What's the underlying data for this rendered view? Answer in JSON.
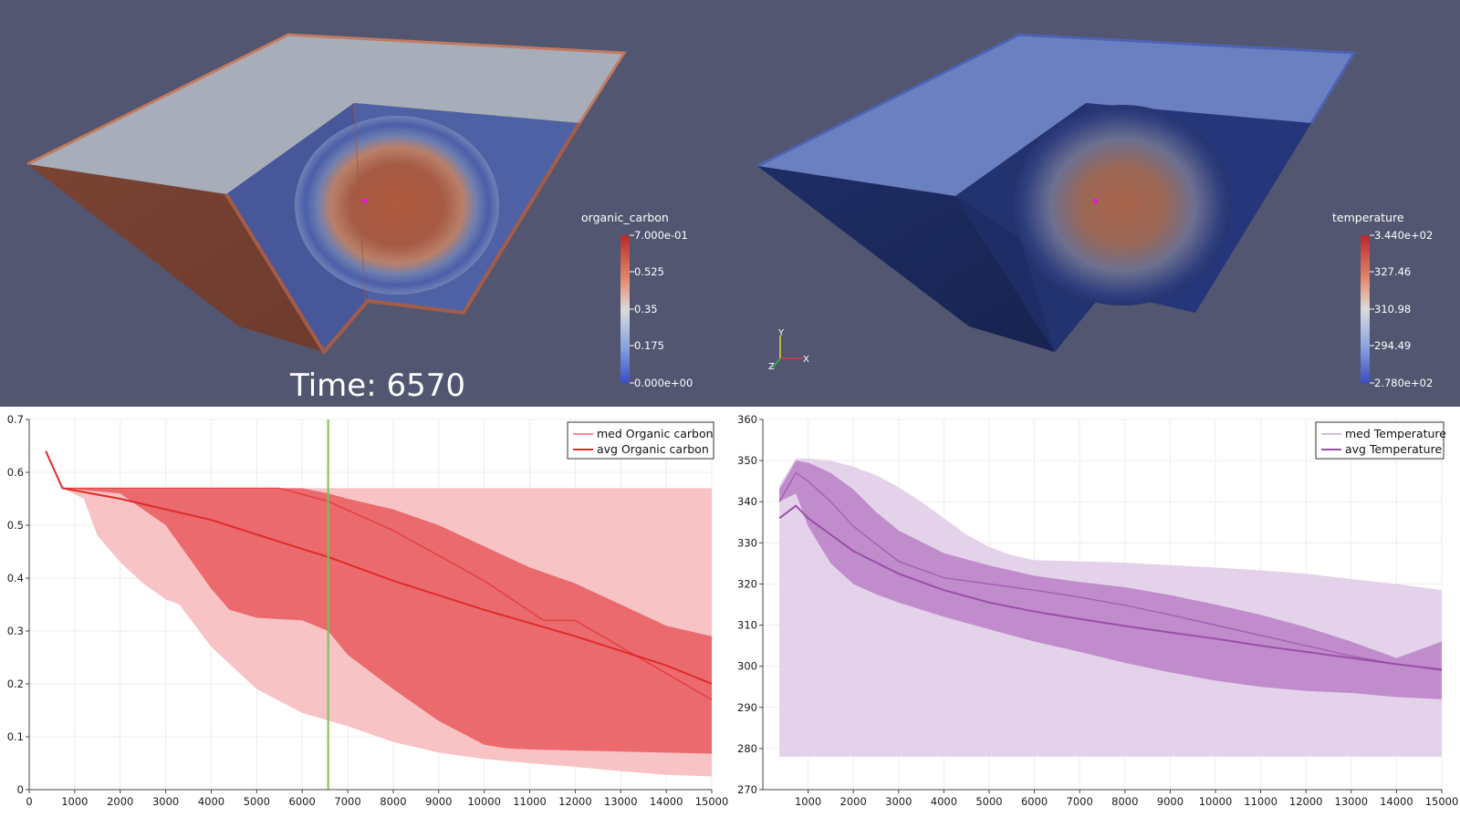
{
  "viewport_left": {
    "colorbar_title": "organic_carbon",
    "colorbar_ticks": [
      "7.000e-01",
      "0.525",
      "0.35",
      "0.175",
      "0.000e+00"
    ],
    "time_label": "Time: 6570"
  },
  "viewport_right": {
    "colorbar_title": "temperature",
    "colorbar_ticks": [
      "3.440e+02",
      "327.46",
      "310.98",
      "294.49",
      "2.780e+02"
    ],
    "axes_labels": {
      "x": "X",
      "y": "Y",
      "z": "Z"
    }
  },
  "colors": {
    "background_3d": "#525670",
    "organic_line": "#e02a2a",
    "organic_band_outer": "#f7c3c5",
    "organic_band_inner": "#ea6a6e",
    "time_marker": "#7cc04a",
    "temp_line": "#9a4ea8",
    "temp_band_outer": "#e4d2ea",
    "temp_band_inner": "#c08ccc"
  },
  "chart_data": [
    {
      "type": "line",
      "xlim": [
        0,
        15000
      ],
      "ylim": [
        0,
        0.7
      ],
      "x_ticks": [
        0,
        1000,
        2000,
        3000,
        4000,
        5000,
        6000,
        7000,
        8000,
        9000,
        10000,
        11000,
        12000,
        13000,
        14000,
        15000
      ],
      "y_ticks": [
        0,
        0.1,
        0.2,
        0.3,
        0.4,
        0.5,
        0.6,
        0.7
      ],
      "grid": true,
      "legend_position": "top-right",
      "legend": [
        "med Organic carbon",
        "avg Organic carbon"
      ],
      "time_marker_x": 6570,
      "series": [
        {
          "name": "avg Organic carbon",
          "x": [
            365,
            730,
            2000,
            4000,
            6000,
            6570,
            8000,
            10000,
            12000,
            14000,
            15000
          ],
          "values": [
            0.64,
            0.57,
            0.55,
            0.51,
            0.455,
            0.44,
            0.395,
            0.34,
            0.29,
            0.235,
            0.2
          ]
        },
        {
          "name": "med Organic carbon",
          "x": [
            730,
            2000,
            4000,
            5500,
            6570,
            8000,
            10000,
            11300,
            12000,
            13000,
            14000,
            15000
          ],
          "values": [
            0.57,
            0.57,
            0.57,
            0.57,
            0.545,
            0.49,
            0.395,
            0.32,
            0.32,
            0.27,
            0.22,
            0.17
          ]
        }
      ],
      "band_outer": {
        "x": [
          730,
          1200,
          1500,
          2000,
          2500,
          3000,
          3300,
          4000,
          5000,
          6000,
          7000,
          8000,
          9000,
          10000,
          11000,
          12000,
          13000,
          14000,
          15000
        ],
        "upper": [
          0.57,
          0.57,
          0.57,
          0.57,
          0.57,
          0.57,
          0.57,
          0.57,
          0.57,
          0.57,
          0.57,
          0.57,
          0.57,
          0.57,
          0.57,
          0.57,
          0.57,
          0.57,
          0.57
        ],
        "lower": [
          0.57,
          0.55,
          0.48,
          0.43,
          0.39,
          0.36,
          0.35,
          0.27,
          0.19,
          0.145,
          0.12,
          0.09,
          0.07,
          0.058,
          0.05,
          0.043,
          0.035,
          0.028,
          0.025
        ]
      },
      "band_inner": {
        "x": [
          730,
          2000,
          3000,
          4000,
          4400,
          5000,
          6000,
          6570,
          7000,
          8000,
          9000,
          10000,
          10500,
          11000,
          12000,
          13000,
          14000,
          15000
        ],
        "upper": [
          0.57,
          0.57,
          0.57,
          0.57,
          0.57,
          0.57,
          0.57,
          0.56,
          0.55,
          0.53,
          0.5,
          0.46,
          0.44,
          0.42,
          0.39,
          0.35,
          0.31,
          0.29
        ],
        "lower": [
          0.57,
          0.56,
          0.5,
          0.38,
          0.34,
          0.325,
          0.32,
          0.3,
          0.255,
          0.19,
          0.13,
          0.085,
          0.078,
          0.076,
          0.074,
          0.072,
          0.07,
          0.068
        ]
      }
    },
    {
      "type": "line",
      "xlim": [
        0,
        15000
      ],
      "ylim": [
        270,
        360
      ],
      "x_ticks": [
        1000,
        2000,
        3000,
        4000,
        5000,
        6000,
        7000,
        8000,
        9000,
        10000,
        11000,
        12000,
        13000,
        14000,
        15000
      ],
      "y_ticks": [
        270,
        280,
        290,
        300,
        310,
        320,
        330,
        340,
        350,
        360
      ],
      "grid": true,
      "legend_position": "top-right",
      "legend": [
        "med Temperature",
        "avg Temperature"
      ],
      "series": [
        {
          "name": "avg Temperature",
          "x": [
            365,
            730,
            1000,
            1500,
            2000,
            3000,
            4000,
            5000,
            6000,
            7000,
            8000,
            9000,
            10000,
            11000,
            12000,
            13000,
            14000,
            15000
          ],
          "values": [
            336,
            339,
            336,
            332,
            328,
            322.5,
            318.5,
            315.5,
            313.3,
            311.5,
            309.8,
            308.2,
            306.7,
            305,
            303.5,
            302,
            300.5,
            299.2
          ]
        },
        {
          "name": "med Temperature",
          "x": [
            365,
            730,
            1000,
            1500,
            2000,
            3000,
            4000,
            5000,
            6000,
            7000,
            8000,
            9000,
            10000,
            11000,
            12000,
            13000,
            14000,
            15000
          ],
          "values": [
            340,
            347,
            345,
            340,
            334,
            325.5,
            321.5,
            320,
            318.5,
            316.8,
            314.8,
            312.5,
            310,
            307.5,
            305,
            302.5,
            300.5,
            299
          ]
        }
      ],
      "band_outer": {
        "x": [
          365,
          730,
          1000,
          1500,
          2000,
          2500,
          3000,
          3500,
          4000,
          4500,
          5000,
          5500,
          6000,
          7000,
          8000,
          9000,
          10000,
          11000,
          12000,
          13000,
          14000,
          15000
        ],
        "upper": [
          344,
          350.5,
          350.5,
          350,
          348.5,
          346.5,
          343.5,
          340,
          336,
          332,
          329,
          327,
          325.8,
          325.5,
          325.2,
          324.6,
          324,
          323.3,
          322.5,
          321.2,
          320,
          318.5
        ],
        "lower": [
          278,
          278,
          278,
          278,
          278,
          278,
          278,
          278,
          278,
          278,
          278,
          278,
          278,
          278,
          278,
          278,
          278,
          278,
          278,
          278,
          278,
          278
        ]
      },
      "band_inner": {
        "x": [
          365,
          730,
          1000,
          1500,
          2000,
          2500,
          3000,
          4000,
          5000,
          6000,
          7000,
          8000,
          9000,
          10000,
          11000,
          12000,
          13000,
          14000,
          15000
        ],
        "upper": [
          343,
          350,
          349.5,
          347,
          343,
          337.5,
          333,
          327.5,
          324.5,
          322,
          320.5,
          319.2,
          317.3,
          315,
          312.5,
          309.5,
          306,
          302,
          306
        ],
        "lower": [
          340,
          342,
          334,
          325,
          320,
          317.5,
          315.5,
          312,
          309,
          306,
          303.5,
          300.8,
          298.5,
          296.5,
          295,
          294,
          293.5,
          292.5,
          292
        ]
      }
    }
  ]
}
